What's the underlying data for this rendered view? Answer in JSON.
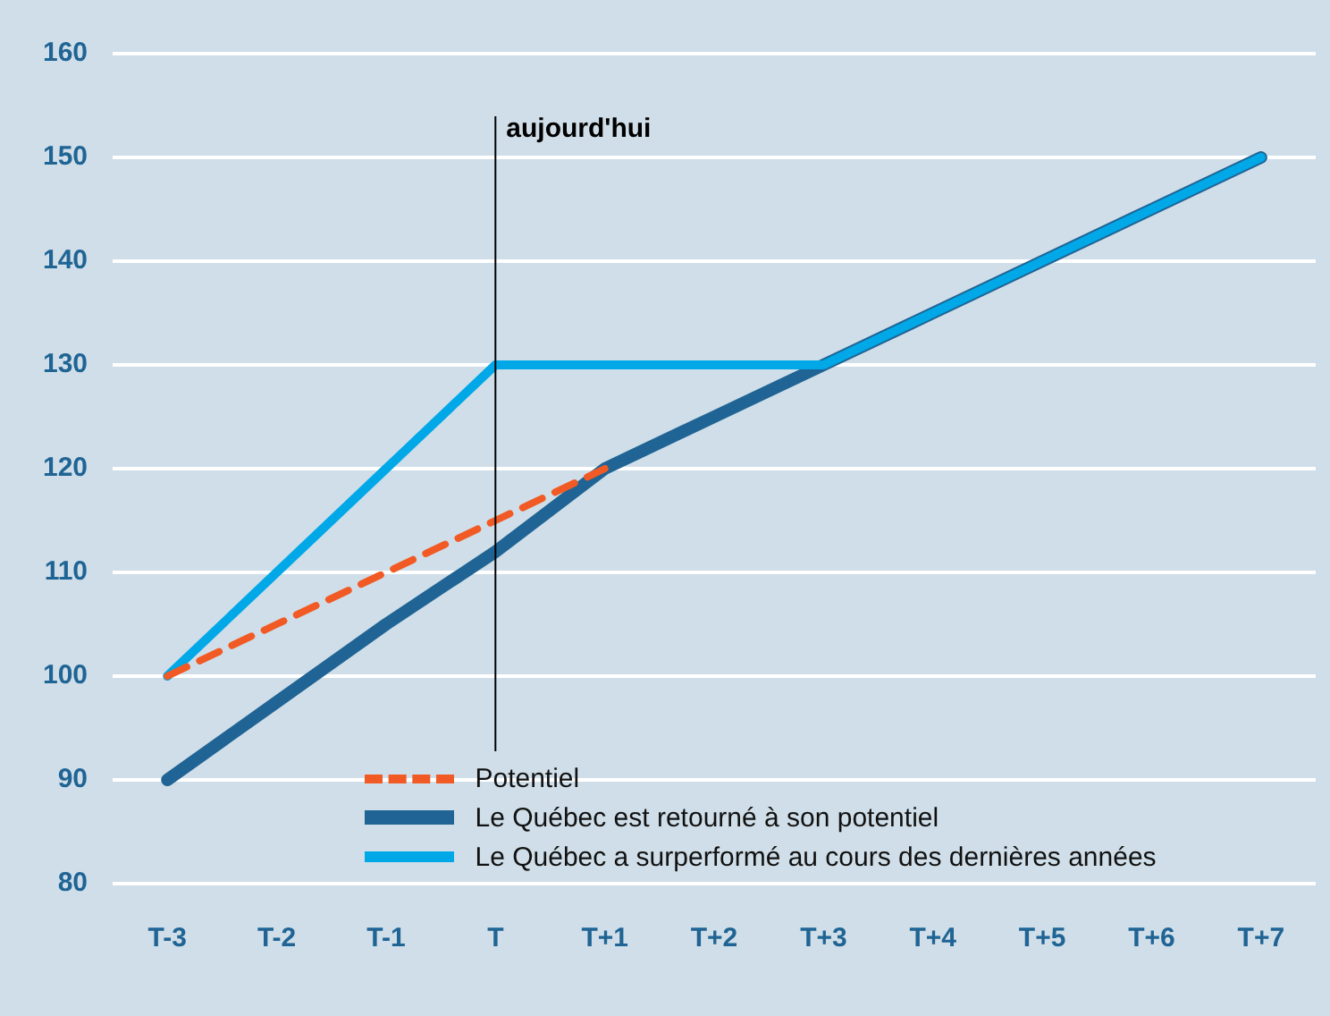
{
  "chart_data": {
    "type": "line",
    "categories": [
      "T-3",
      "T-2",
      "T-1",
      "T",
      "T+1",
      "T+2",
      "T+3",
      "T+4",
      "T+5",
      "T+6",
      "T+7"
    ],
    "series": [
      {
        "name": "Potentiel",
        "color": "#f15a24",
        "line_style": "dashed",
        "values": [
          100,
          105,
          110,
          115,
          120,
          null,
          null,
          null,
          null,
          null,
          null
        ]
      },
      {
        "name": "Le Québec est retourné à son potentiel",
        "color": "#1f6494",
        "line_style": "solid",
        "values": [
          90,
          97.5,
          105,
          112,
          120,
          125,
          130,
          135,
          140,
          145,
          150
        ]
      },
      {
        "name": "Le Québec a surperformé au cours des dernières années",
        "color": "#00a8e8",
        "line_style": "solid",
        "values": [
          100,
          110,
          120,
          130,
          130,
          130,
          130,
          135,
          140,
          145,
          150
        ]
      }
    ],
    "ylim": [
      80,
      160
    ],
    "yticks": [
      80,
      90,
      100,
      110,
      120,
      130,
      140,
      150,
      160
    ],
    "grid": "y",
    "legend": "bottom",
    "marker": "none",
    "ref_lines": [
      {
        "axis": "x",
        "value": "T",
        "label": "aujourd'hui",
        "color": "#000000"
      }
    ]
  }
}
